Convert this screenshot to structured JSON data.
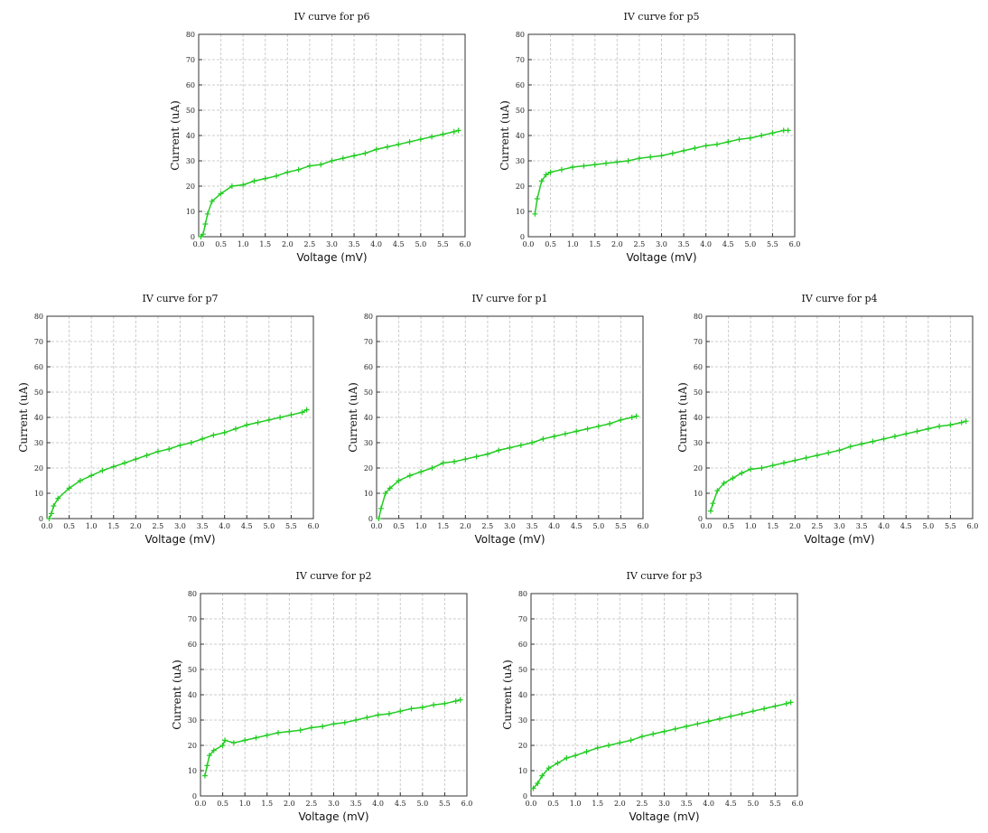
{
  "chart_data": [
    {
      "type": "line",
      "title": "IV curve for p6",
      "xlabel": "Voltage (mV)",
      "ylabel": "Current (uA)",
      "color": "#22cc22",
      "grid": true,
      "xlim": [
        0,
        6
      ],
      "ylim": [
        0,
        80
      ],
      "xticks": [
        {
          "value": 0,
          "label": "0.0"
        },
        0.5,
        {
          "value": 1,
          "label": "1.0"
        },
        1.5,
        {
          "value": 2,
          "label": "2.0"
        },
        2.5,
        {
          "value": 3,
          "label": "3.0"
        },
        3.5,
        {
          "value": 4,
          "label": "4.0"
        },
        4.5,
        {
          "value": 5,
          "label": "5.0"
        },
        5.5,
        {
          "value": 6,
          "label": "6.0"
        }
      ],
      "yticks": [
        0,
        10,
        20,
        30,
        40,
        50,
        60,
        70,
        80
      ],
      "x": [
        0.05,
        0.1,
        0.15,
        0.2,
        0.3,
        0.5,
        0.75,
        1.0,
        1.25,
        1.5,
        1.75,
        2.0,
        2.25,
        2.5,
        2.75,
        3.0,
        3.25,
        3.5,
        3.75,
        4.0,
        4.25,
        4.5,
        4.75,
        5.0,
        5.25,
        5.5,
        5.75,
        5.85
      ],
      "values": [
        0,
        1,
        5,
        9,
        14,
        17,
        20,
        20.5,
        22,
        23,
        24,
        25.5,
        26.5,
        28,
        28.5,
        30,
        31,
        32,
        33,
        34.5,
        35.5,
        36.5,
        37.5,
        38.5,
        39.5,
        40.5,
        41.5,
        42
      ]
    },
    {
      "type": "line",
      "title": "IV curve for p5",
      "xlabel": "Voltage (mV)",
      "ylabel": "Current (uA)",
      "color": "#22cc22",
      "grid": true,
      "xlim": [
        0,
        6
      ],
      "ylim": [
        0,
        80
      ],
      "xticks": [
        {
          "value": 0,
          "label": "0.0"
        },
        0.5,
        {
          "value": 1,
          "label": "1.0"
        },
        1.5,
        {
          "value": 2,
          "label": "2.0"
        },
        2.5,
        {
          "value": 3,
          "label": "3.0"
        },
        3.5,
        {
          "value": 4,
          "label": "4.0"
        },
        4.5,
        {
          "value": 5,
          "label": "5.0"
        },
        5.5,
        {
          "value": 6,
          "label": "6.0"
        }
      ],
      "yticks": [
        0,
        10,
        20,
        30,
        40,
        50,
        60,
        70,
        80
      ],
      "x": [
        0.15,
        0.2,
        0.3,
        0.4,
        0.5,
        0.75,
        1.0,
        1.25,
        1.5,
        1.75,
        2.0,
        2.25,
        2.5,
        2.75,
        3.0,
        3.25,
        3.5,
        3.75,
        4.0,
        4.25,
        4.5,
        4.75,
        5.0,
        5.25,
        5.5,
        5.75,
        5.85
      ],
      "values": [
        9,
        15,
        22,
        24.5,
        25.5,
        26.5,
        27.5,
        28,
        28.5,
        29,
        29.5,
        30,
        31,
        31.5,
        32,
        33,
        34,
        35,
        36,
        36.5,
        37.5,
        38.5,
        39,
        40,
        41,
        42,
        42
      ]
    },
    {
      "type": "line",
      "title": "IV curve for p7",
      "xlabel": "Voltage (mV)",
      "ylabel": "Current (uA)",
      "color": "#22cc22",
      "grid": true,
      "xlim": [
        0,
        6
      ],
      "ylim": [
        0,
        80
      ],
      "xticks": [
        {
          "value": 0,
          "label": "0.0"
        },
        0.5,
        {
          "value": 1,
          "label": "1.0"
        },
        1.5,
        {
          "value": 2,
          "label": "2.0"
        },
        2.5,
        {
          "value": 3,
          "label": "3.0"
        },
        3.5,
        {
          "value": 4,
          "label": "4.0"
        },
        4.5,
        {
          "value": 5,
          "label": "5.0"
        },
        5.5,
        {
          "value": 6,
          "label": "6.0"
        }
      ],
      "yticks": [
        0,
        10,
        20,
        30,
        40,
        50,
        60,
        70,
        80
      ],
      "x": [
        0.05,
        0.1,
        0.15,
        0.25,
        0.5,
        0.75,
        1.0,
        1.25,
        1.5,
        1.75,
        2.0,
        2.25,
        2.5,
        2.75,
        3.0,
        3.25,
        3.5,
        3.75,
        4.0,
        4.25,
        4.5,
        4.75,
        5.0,
        5.25,
        5.5,
        5.75,
        5.85
      ],
      "values": [
        0,
        2,
        5,
        8,
        12,
        15,
        17,
        19,
        20.5,
        22,
        23.5,
        25,
        26.5,
        27.5,
        29,
        30,
        31.5,
        33,
        34,
        35.5,
        37,
        38,
        39,
        40,
        41,
        42,
        43
      ]
    },
    {
      "type": "line",
      "title": "IV curve for p1",
      "xlabel": "Voltage (mV)",
      "ylabel": "Current (uA)",
      "color": "#22cc22",
      "grid": true,
      "xlim": [
        0,
        6
      ],
      "ylim": [
        0,
        80
      ],
      "xticks": [
        {
          "value": 0,
          "label": "0.0"
        },
        0.5,
        {
          "value": 1,
          "label": "1.0"
        },
        1.5,
        {
          "value": 2,
          "label": "2.0"
        },
        2.5,
        {
          "value": 3,
          "label": "3.0"
        },
        3.5,
        {
          "value": 4,
          "label": "4.0"
        },
        4.5,
        {
          "value": 5,
          "label": "5.0"
        },
        5.5,
        {
          "value": 6,
          "label": "6.0"
        }
      ],
      "yticks": [
        0,
        10,
        20,
        30,
        40,
        50,
        60,
        70,
        80
      ],
      "x": [
        0.05,
        0.1,
        0.2,
        0.3,
        0.5,
        0.75,
        1.0,
        1.25,
        1.5,
        1.75,
        2.0,
        2.25,
        2.5,
        2.75,
        3.0,
        3.25,
        3.5,
        3.75,
        4.0,
        4.25,
        4.5,
        4.75,
        5.0,
        5.25,
        5.5,
        5.75,
        5.85
      ],
      "values": [
        0,
        4,
        10,
        12,
        15,
        17,
        18.5,
        20,
        22,
        22.5,
        23.5,
        24.5,
        25.5,
        27,
        28,
        29,
        30,
        31.5,
        32.5,
        33.5,
        34.5,
        35.5,
        36.5,
        37.5,
        39,
        40,
        40.5
      ]
    },
    {
      "type": "line",
      "title": "IV curve for p4",
      "xlabel": "Voltage (mV)",
      "ylabel": "Current (uA)",
      "color": "#22cc22",
      "grid": true,
      "xlim": [
        0,
        6
      ],
      "ylim": [
        0,
        80
      ],
      "xticks": [
        {
          "value": 0,
          "label": "0.0"
        },
        0.5,
        {
          "value": 1,
          "label": "1.0"
        },
        1.5,
        {
          "value": 2,
          "label": "2.0"
        },
        2.5,
        {
          "value": 3,
          "label": "3.0"
        },
        3.5,
        {
          "value": 4,
          "label": "4.0"
        },
        4.5,
        {
          "value": 5,
          "label": "5.0"
        },
        5.5,
        {
          "value": 6,
          "label": "6.0"
        }
      ],
      "yticks": [
        0,
        10,
        20,
        30,
        40,
        50,
        60,
        70,
        80
      ],
      "x": [
        0.1,
        0.15,
        0.25,
        0.4,
        0.6,
        0.8,
        1.0,
        1.25,
        1.5,
        1.75,
        2.0,
        2.25,
        2.5,
        2.75,
        3.0,
        3.25,
        3.5,
        3.75,
        4.0,
        4.25,
        4.5,
        4.75,
        5.0,
        5.25,
        5.5,
        5.75,
        5.85
      ],
      "values": [
        3,
        6,
        11,
        14,
        16,
        18,
        19.5,
        20,
        21,
        22,
        23,
        24,
        25,
        26,
        27,
        28.5,
        29.5,
        30.5,
        31.5,
        32.5,
        33.5,
        34.5,
        35.5,
        36.5,
        37,
        38,
        38.5
      ]
    },
    {
      "type": "line",
      "title": "IV curve for p2",
      "xlabel": "Voltage (mV)",
      "ylabel": "Current (uA)",
      "color": "#22cc22",
      "grid": true,
      "xlim": [
        0,
        6
      ],
      "ylim": [
        0,
        80
      ],
      "xticks": [
        {
          "value": 0,
          "label": "0.0"
        },
        0.5,
        {
          "value": 1,
          "label": "1.0"
        },
        1.5,
        {
          "value": 2,
          "label": "2.0"
        },
        2.5,
        {
          "value": 3,
          "label": "3.0"
        },
        3.5,
        {
          "value": 4,
          "label": "4.0"
        },
        4.5,
        {
          "value": 5,
          "label": "5.0"
        },
        5.5,
        {
          "value": 6,
          "label": "6.0"
        }
      ],
      "yticks": [
        0,
        10,
        20,
        30,
        40,
        50,
        60,
        70,
        80
      ],
      "x": [
        0.1,
        0.15,
        0.2,
        0.3,
        0.5,
        0.55,
        0.75,
        1.0,
        1.25,
        1.5,
        1.75,
        2.0,
        2.25,
        2.5,
        2.75,
        3.0,
        3.25,
        3.5,
        3.75,
        4.0,
        4.25,
        4.5,
        4.75,
        5.0,
        5.25,
        5.5,
        5.75,
        5.85
      ],
      "values": [
        8,
        12,
        16,
        18,
        20,
        22,
        21,
        22,
        23,
        24,
        25,
        25.5,
        26,
        27,
        27.5,
        28.5,
        29,
        30,
        31,
        32,
        32.5,
        33.5,
        34.5,
        35,
        36,
        36.5,
        37.5,
        38
      ]
    },
    {
      "type": "line",
      "title": "IV curve for p3",
      "xlabel": "Voltage (mV)",
      "ylabel": "Current (uA)",
      "color": "#22cc22",
      "grid": true,
      "xlim": [
        0,
        6
      ],
      "ylim": [
        0,
        80
      ],
      "xticks": [
        {
          "value": 0,
          "label": "0.0"
        },
        0.5,
        {
          "value": 1,
          "label": "1.0"
        },
        1.5,
        {
          "value": 2,
          "label": "2.0"
        },
        2.5,
        {
          "value": 3,
          "label": "3.0"
        },
        3.5,
        {
          "value": 4,
          "label": "4.0"
        },
        4.5,
        {
          "value": 5,
          "label": "5.0"
        },
        5.5,
        {
          "value": 6,
          "label": "6.0"
        }
      ],
      "yticks": [
        0,
        10,
        20,
        30,
        40,
        50,
        60,
        70,
        80
      ],
      "x": [
        0.05,
        0.15,
        0.25,
        0.4,
        0.6,
        0.8,
        1.0,
        1.25,
        1.5,
        1.75,
        2.0,
        2.25,
        2.5,
        2.75,
        3.0,
        3.25,
        3.5,
        3.75,
        4.0,
        4.25,
        4.5,
        4.75,
        5.0,
        5.25,
        5.5,
        5.75,
        5.85
      ],
      "values": [
        3,
        5,
        8,
        11,
        13,
        15,
        16,
        17.5,
        19,
        20,
        21,
        22,
        23.5,
        24.5,
        25.5,
        26.5,
        27.5,
        28.5,
        29.5,
        30.5,
        31.5,
        32.5,
        33.5,
        34.5,
        35.5,
        36.5,
        37
      ]
    }
  ]
}
